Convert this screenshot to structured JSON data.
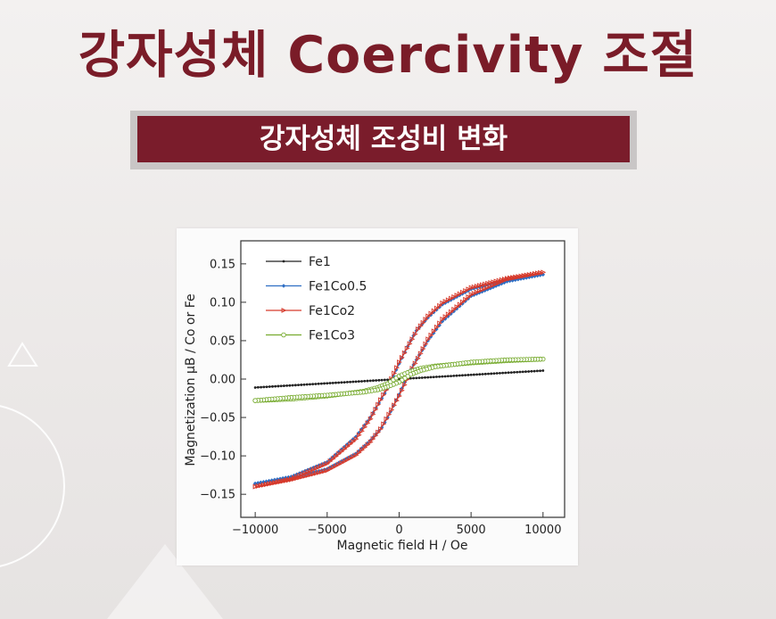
{
  "header": {
    "title": "강자성체 Coercivity 조절"
  },
  "subheader": {
    "label": "강자성체 조성비 변화"
  },
  "chart_data": {
    "type": "line",
    "xlabel": "Magnetic field H / Oe",
    "ylabel": "Magnetization μB / Co or Fe",
    "xlim": [
      -11000,
      11500
    ],
    "ylim": [
      -0.18,
      0.18
    ],
    "x_ticks": [
      -10000,
      -5000,
      0,
      5000,
      10000
    ],
    "x_tick_labels": [
      "−10000",
      "−5000",
      "0",
      "5000",
      "10000"
    ],
    "y_ticks": [
      0.15,
      0.1,
      0.05,
      0.0,
      -0.05,
      -0.1,
      -0.15
    ],
    "y_tick_labels": [
      "0.15",
      "0.10",
      "0.05",
      "0.00",
      "−0.05",
      "−0.10",
      "−0.15"
    ],
    "legend_position": "top-left",
    "series": [
      {
        "name": "Fe1",
        "color": "#222222",
        "marker": "dot",
        "x": [
          -10000,
          -5000,
          0,
          5000,
          10000
        ],
        "y": [
          -0.011,
          -0.0055,
          0.0,
          0.0055,
          0.011
        ]
      },
      {
        "name": "Fe1Co0.5",
        "color": "#2f6fc4",
        "marker": "diamond",
        "x": [
          -10000,
          -7500,
          -5000,
          -3000,
          -2000,
          -1200,
          -800,
          0,
          800,
          1200,
          2000,
          3000,
          5000,
          7500,
          10000,
          7500,
          5000,
          3000,
          2000,
          1200,
          800,
          0,
          -800,
          -1200,
          -2000,
          -3000,
          -5000,
          -7500,
          -10000
        ],
        "y": [
          -0.136,
          -0.127,
          -0.108,
          -0.075,
          -0.05,
          -0.025,
          -0.012,
          0.02,
          0.05,
          0.063,
          0.08,
          0.097,
          0.117,
          0.129,
          0.136,
          0.127,
          0.108,
          0.075,
          0.05,
          0.025,
          0.012,
          -0.02,
          -0.05,
          -0.063,
          -0.08,
          -0.097,
          -0.117,
          -0.129,
          -0.136
        ]
      },
      {
        "name": "Fe1Co2",
        "color": "#d63a2c",
        "marker": "triangle",
        "x": [
          -10000,
          -7500,
          -5000,
          -3000,
          -2000,
          -1300,
          -900,
          0,
          900,
          1300,
          2000,
          3000,
          5000,
          7500,
          10000,
          7500,
          5000,
          3000,
          2000,
          1300,
          900,
          0,
          -900,
          -1300,
          -2000,
          -3000,
          -5000,
          -7500,
          -10000
        ],
        "y": [
          -0.14,
          -0.13,
          -0.11,
          -0.078,
          -0.052,
          -0.027,
          -0.014,
          0.022,
          0.052,
          0.065,
          0.082,
          0.099,
          0.119,
          0.131,
          0.139,
          0.13,
          0.11,
          0.078,
          0.052,
          0.027,
          0.014,
          -0.022,
          -0.052,
          -0.065,
          -0.082,
          -0.099,
          -0.119,
          -0.131,
          -0.14
        ]
      },
      {
        "name": "Fe1Co3",
        "color": "#77ab2f",
        "marker": "circle",
        "x": [
          -10000,
          -7500,
          -5000,
          -2500,
          -1500,
          -800,
          0,
          800,
          1500,
          2500,
          5000,
          7500,
          10000,
          7500,
          5000,
          2500,
          1500,
          800,
          0,
          -800,
          -1500,
          -2500,
          -5000,
          -7500,
          -10000
        ],
        "y": [
          -0.028,
          -0.026,
          -0.022,
          -0.016,
          -0.011,
          -0.006,
          0.004,
          0.01,
          0.014,
          0.017,
          0.021,
          0.024,
          0.026,
          0.025,
          0.022,
          0.016,
          0.011,
          0.006,
          -0.004,
          -0.01,
          -0.014,
          -0.017,
          -0.021,
          -0.024,
          -0.028
        ]
      }
    ]
  }
}
